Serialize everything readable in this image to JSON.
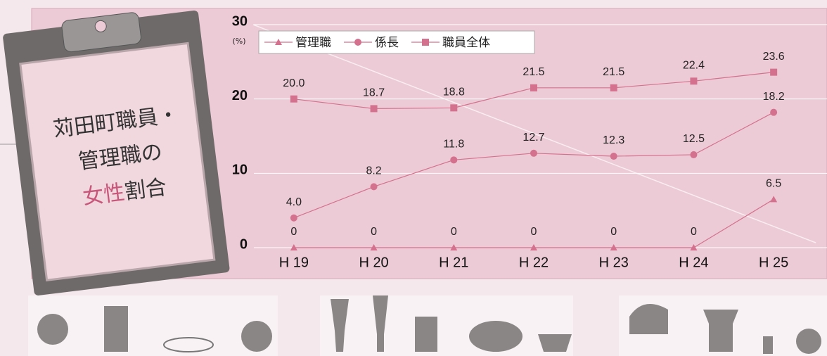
{
  "chart_data": {
    "type": "line",
    "title_lines": [
      "苅田町職員・",
      "管理職の"
    ],
    "title_highlight": "女性",
    "title_rest": "割合",
    "unit": "(%)",
    "categories": [
      "H 19",
      "H 20",
      "H 21",
      "H 22",
      "H 23",
      "H 24",
      "H 25"
    ],
    "series": [
      {
        "name": "管理職",
        "color": "#d4718e",
        "marker": "triangle",
        "values": [
          0,
          0,
          0,
          0,
          0,
          0,
          6.5
        ],
        "value_labels": [
          "0",
          "0",
          "0",
          "0",
          "0",
          "0",
          "6.5"
        ]
      },
      {
        "name": "係長",
        "color": "#d4718e",
        "marker": "circle",
        "values": [
          4.0,
          8.2,
          11.8,
          12.7,
          12.3,
          12.5,
          18.2
        ],
        "value_labels": [
          "4.0",
          "8.2",
          "11.8",
          "12.7",
          "12.3",
          "12.5",
          "18.2"
        ]
      },
      {
        "name": "職員全体",
        "color": "#d4718e",
        "marker": "square",
        "values": [
          20.0,
          18.7,
          18.8,
          21.5,
          21.5,
          22.4,
          23.6
        ],
        "value_labels": [
          "20.0",
          "18.7",
          "18.8",
          "21.5",
          "21.5",
          "22.4",
          "23.6"
        ]
      }
    ],
    "ylim": [
      0,
      30
    ],
    "yticks": [
      0,
      10,
      20,
      30
    ],
    "grid": true,
    "legend": "top-left"
  }
}
